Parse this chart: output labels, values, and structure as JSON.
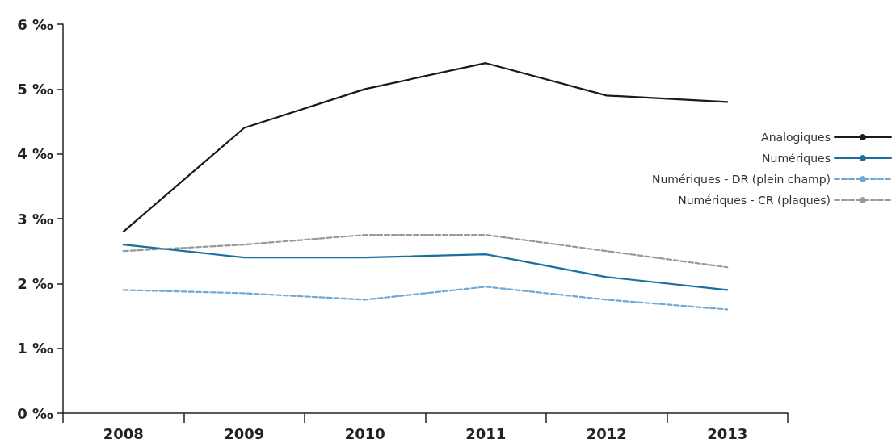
{
  "chart_data": {
    "type": "line",
    "categories": [
      "2008",
      "2009",
      "2010",
      "2011",
      "2012",
      "2013"
    ],
    "series": [
      {
        "name": "Analogiques",
        "color": "#1a1a1a",
        "line_style": "solid",
        "values": [
          2.8,
          4.4,
          5.0,
          5.4,
          4.9,
          4.8
        ]
      },
      {
        "name": "Numériques",
        "color": "#1a6fa0",
        "line_style": "solid",
        "values": [
          2.6,
          2.4,
          2.4,
          2.45,
          2.1,
          1.9
        ]
      },
      {
        "name": "Numériques - DR (plein champ)",
        "color": "#6fa8d6",
        "line_style": "dashed",
        "values": [
          1.9,
          1.85,
          1.75,
          1.95,
          1.75,
          1.6
        ]
      },
      {
        "name": "Numériques - CR (plaques)",
        "color": "#999999",
        "line_style": "dashed",
        "values": [
          2.5,
          2.6,
          2.75,
          2.75,
          2.5,
          2.25
        ]
      }
    ],
    "ylim": [
      0,
      6
    ],
    "yticks": [
      {
        "value": 0,
        "label": "0 ‰"
      },
      {
        "value": 1,
        "label": "1 ‰"
      },
      {
        "value": 2,
        "label": "2 ‰"
      },
      {
        "value": 3,
        "label": "3 ‰"
      },
      {
        "value": 4,
        "label": "4 ‰"
      },
      {
        "value": 5,
        "label": "5 ‰"
      },
      {
        "value": 6,
        "label": "6 ‰"
      }
    ],
    "grid": false,
    "legend": "right",
    "marker": "none"
  }
}
